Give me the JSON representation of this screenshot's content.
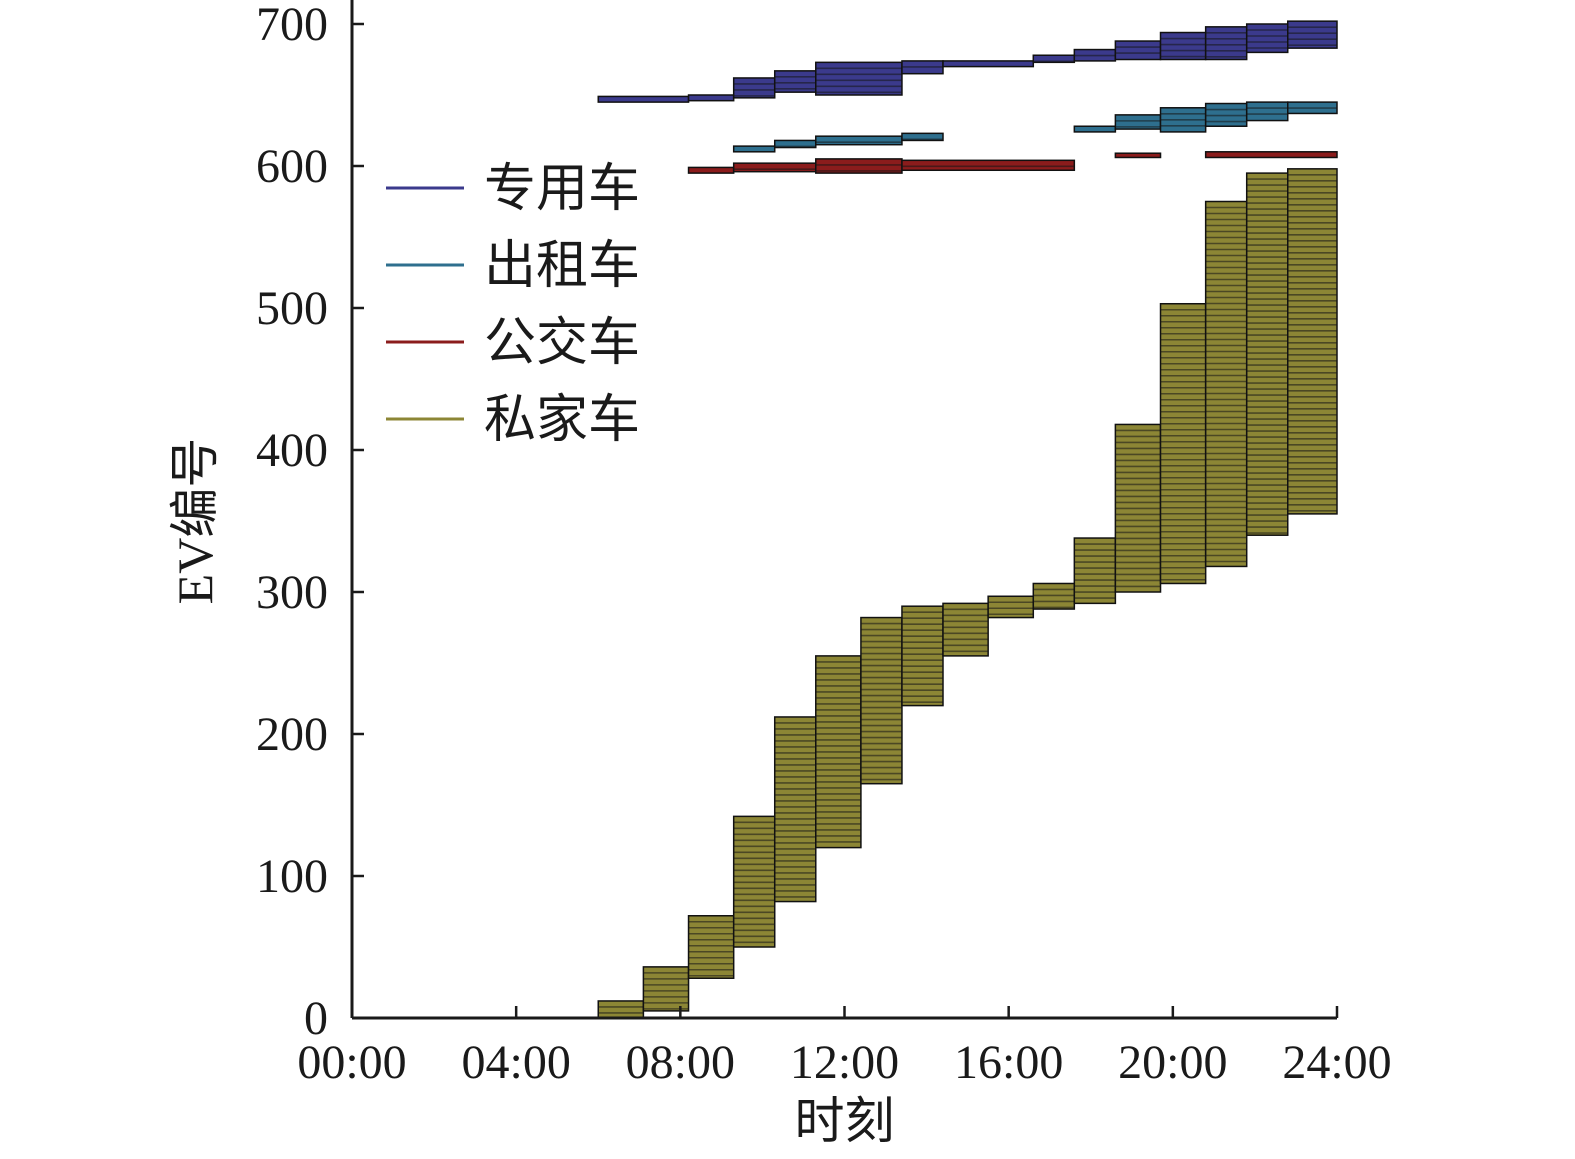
{
  "chart_data": {
    "type": "bar",
    "subtype": "horizontal-gantt",
    "title": "",
    "xlabel": "时刻",
    "ylabel": "EV编号",
    "xlim": [
      0,
      24
    ],
    "ylim": [
      0,
      700
    ],
    "x_ticks": [
      {
        "value": 0,
        "label": "00:00"
      },
      {
        "value": 4,
        "label": "04:00"
      },
      {
        "value": 8,
        "label": "08:00"
      },
      {
        "value": 12,
        "label": "12:00"
      },
      {
        "value": 16,
        "label": "16:00"
      },
      {
        "value": 20,
        "label": "20:00"
      },
      {
        "value": 24,
        "label": "24:00"
      }
    ],
    "y_ticks": [
      {
        "value": 0,
        "label": "0"
      },
      {
        "value": 100,
        "label": "100"
      },
      {
        "value": 200,
        "label": "200"
      },
      {
        "value": 300,
        "label": "300"
      },
      {
        "value": 400,
        "label": "400"
      },
      {
        "value": 500,
        "label": "500"
      },
      {
        "value": 600,
        "label": "600"
      },
      {
        "value": 700,
        "label": "700"
      }
    ],
    "legend_position": "upper-left",
    "grid": false,
    "series": [
      {
        "name": "专用车",
        "color": "#3b3a8c",
        "segments": [
          {
            "y": [
              645,
              649
            ],
            "x": [
              6.0,
              8.2
            ]
          },
          {
            "y": [
              646,
              650
            ],
            "x": [
              8.2,
              9.3
            ]
          },
          {
            "y": [
              648,
              662
            ],
            "x": [
              9.3,
              10.3
            ]
          },
          {
            "y": [
              652,
              667
            ],
            "x": [
              10.3,
              11.3
            ]
          },
          {
            "y": [
              650,
              673
            ],
            "x": [
              11.3,
              13.4
            ]
          },
          {
            "y": [
              665,
              674
            ],
            "x": [
              13.4,
              14.4
            ]
          },
          {
            "y": [
              670,
              674
            ],
            "x": [
              14.4,
              16.6
            ]
          },
          {
            "y": [
              673,
              678
            ],
            "x": [
              16.6,
              17.6
            ]
          },
          {
            "y": [
              674,
              682
            ],
            "x": [
              17.6,
              18.6
            ]
          },
          {
            "y": [
              675,
              688
            ],
            "x": [
              18.6,
              19.7
            ]
          },
          {
            "y": [
              675,
              694
            ],
            "x": [
              19.7,
              20.8
            ]
          },
          {
            "y": [
              675,
              698
            ],
            "x": [
              20.8,
              21.8
            ]
          },
          {
            "y": [
              680,
              700
            ],
            "x": [
              21.8,
              22.8
            ]
          },
          {
            "y": [
              683,
              702
            ],
            "x": [
              22.8,
              24.0
            ]
          }
        ]
      },
      {
        "name": "出租车",
        "color": "#2e6f8e",
        "segments": [
          {
            "y": [
              610,
              614
            ],
            "x": [
              9.3,
              10.3
            ]
          },
          {
            "y": [
              613,
              618
            ],
            "x": [
              10.3,
              11.3
            ]
          },
          {
            "y": [
              615,
              621
            ],
            "x": [
              11.3,
              13.4
            ]
          },
          {
            "y": [
              618,
              623
            ],
            "x": [
              13.4,
              14.4
            ]
          },
          {
            "y": [
              624,
              628
            ],
            "x": [
              17.6,
              18.6
            ]
          },
          {
            "y": [
              626,
              636
            ],
            "x": [
              18.6,
              19.7
            ]
          },
          {
            "y": [
              624,
              641
            ],
            "x": [
              19.7,
              20.8
            ]
          },
          {
            "y": [
              628,
              644
            ],
            "x": [
              20.8,
              21.8
            ]
          },
          {
            "y": [
              632,
              645
            ],
            "x": [
              21.8,
              22.8
            ]
          },
          {
            "y": [
              637,
              645
            ],
            "x": [
              22.8,
              24.0
            ]
          }
        ]
      },
      {
        "name": "公交车",
        "color": "#8b1c1c",
        "segments": [
          {
            "y": [
              595,
              599
            ],
            "x": [
              8.2,
              9.3
            ]
          },
          {
            "y": [
              596,
              602
            ],
            "x": [
              9.3,
              11.3
            ]
          },
          {
            "y": [
              595,
              605
            ],
            "x": [
              11.3,
              13.4
            ]
          },
          {
            "y": [
              597,
              604
            ],
            "x": [
              13.4,
              17.6
            ]
          },
          {
            "y": [
              606,
              609
            ],
            "x": [
              18.6,
              19.7
            ]
          },
          {
            "y": [
              606,
              610
            ],
            "x": [
              20.8,
              24.0
            ]
          }
        ]
      },
      {
        "name": "私家车",
        "color": "#8c8635",
        "segments": [
          {
            "y": [
              0,
              12
            ],
            "x": [
              6.0,
              7.1
            ]
          },
          {
            "y": [
              5,
              36
            ],
            "x": [
              7.1,
              8.2
            ]
          },
          {
            "y": [
              28,
              72
            ],
            "x": [
              8.2,
              9.3
            ]
          },
          {
            "y": [
              50,
              142
            ],
            "x": [
              9.3,
              10.3
            ]
          },
          {
            "y": [
              82,
              212
            ],
            "x": [
              10.3,
              11.3
            ]
          },
          {
            "y": [
              120,
              255
            ],
            "x": [
              11.3,
              12.4
            ]
          },
          {
            "y": [
              165,
              282
            ],
            "x": [
              12.4,
              13.4
            ]
          },
          {
            "y": [
              220,
              290
            ],
            "x": [
              13.4,
              14.4
            ]
          },
          {
            "y": [
              255,
              292
            ],
            "x": [
              14.4,
              15.5
            ]
          },
          {
            "y": [
              282,
              297
            ],
            "x": [
              15.5,
              16.6
            ]
          },
          {
            "y": [
              288,
              306
            ],
            "x": [
              16.6,
              17.6
            ]
          },
          {
            "y": [
              292,
              338
            ],
            "x": [
              17.6,
              18.6
            ]
          },
          {
            "y": [
              300,
              418
            ],
            "x": [
              18.6,
              19.7
            ]
          },
          {
            "y": [
              306,
              503
            ],
            "x": [
              19.7,
              20.8
            ]
          },
          {
            "y": [
              318,
              575
            ],
            "x": [
              20.8,
              21.8
            ]
          },
          {
            "y": [
              340,
              595
            ],
            "x": [
              21.8,
              22.8
            ]
          },
          {
            "y": [
              355,
              598
            ],
            "x": [
              22.8,
              24.0
            ]
          }
        ]
      }
    ]
  }
}
